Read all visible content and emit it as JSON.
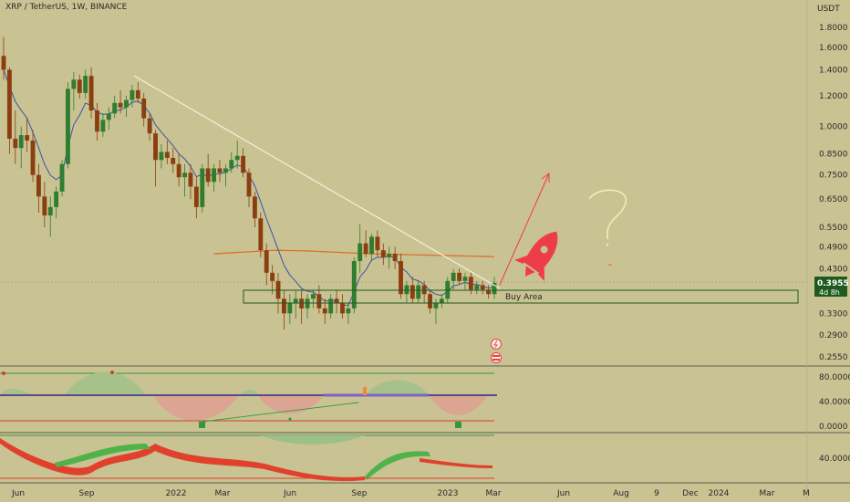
{
  "header": {
    "ticker": "XRP / TetherUS, 1W, BINANCE",
    "currency": "USDT"
  },
  "colors": {
    "background": "#c9c292",
    "bull": "#2f7d2f",
    "bear": "#8b3f10",
    "ema_short": "#3a55a8",
    "ema_long": "#e0702a",
    "trendline": "#f4f1dd",
    "buy_zone": "#1f5a1f",
    "rocket": "#ee3d4a",
    "arrow": "#ee3d4a",
    "question_mark": "#f2eeb0"
  },
  "price_badge": {
    "value": "0.3955",
    "countdown": "4d 8h"
  },
  "annotations": {
    "buy_area": "Buy Area"
  },
  "chart_data": {
    "type": "candlestick",
    "scale": "log",
    "y_ticks": [
      "1.8000",
      "1.6000",
      "1.4000",
      "1.2000",
      "1.0000",
      "0.8500",
      "0.7500",
      "0.6500",
      "0.5500",
      "0.4900",
      "0.4300",
      "0.3300",
      "0.2900",
      "0.2550"
    ],
    "x_ticks": [
      "Jun",
      "Sep",
      "2022",
      "Mar",
      "Jun",
      "Sep",
      "2023",
      "Mar",
      "Jun",
      "Aug",
      "9",
      "Dec",
      "2024",
      "Mar",
      "M"
    ],
    "last_price": 0.3955,
    "buy_zone": [
      0.355,
      0.385
    ],
    "candles": [
      [
        1.52,
        1.7,
        1.32,
        1.4
      ],
      [
        1.4,
        1.42,
        0.85,
        0.93
      ],
      [
        0.93,
        1.1,
        0.8,
        0.88
      ],
      [
        0.88,
        1.0,
        0.78,
        0.95
      ],
      [
        0.95,
        1.05,
        0.86,
        0.92
      ],
      [
        0.92,
        0.98,
        0.72,
        0.75
      ],
      [
        0.75,
        0.8,
        0.6,
        0.66
      ],
      [
        0.66,
        0.72,
        0.55,
        0.59
      ],
      [
        0.59,
        0.66,
        0.52,
        0.62
      ],
      [
        0.62,
        0.7,
        0.58,
        0.68
      ],
      [
        0.68,
        0.82,
        0.66,
        0.8
      ],
      [
        0.8,
        1.3,
        0.78,
        1.25
      ],
      [
        1.25,
        1.38,
        1.1,
        1.32
      ],
      [
        1.32,
        1.36,
        1.18,
        1.22
      ],
      [
        1.22,
        1.4,
        1.18,
        1.35
      ],
      [
        1.35,
        1.42,
        1.05,
        1.1
      ],
      [
        1.1,
        1.15,
        0.92,
        0.97
      ],
      [
        0.97,
        1.08,
        0.94,
        1.04
      ],
      [
        1.04,
        1.12,
        0.98,
        1.08
      ],
      [
        1.08,
        1.2,
        1.05,
        1.15
      ],
      [
        1.15,
        1.24,
        1.08,
        1.12
      ],
      [
        1.12,
        1.2,
        1.06,
        1.17
      ],
      [
        1.17,
        1.28,
        1.12,
        1.24
      ],
      [
        1.24,
        1.3,
        1.15,
        1.18
      ],
      [
        1.18,
        1.22,
        1.0,
        1.05
      ],
      [
        1.05,
        1.08,
        0.92,
        0.96
      ],
      [
        0.96,
        0.98,
        0.7,
        0.82
      ],
      [
        0.82,
        0.9,
        0.78,
        0.86
      ],
      [
        0.86,
        0.92,
        0.8,
        0.83
      ],
      [
        0.83,
        0.88,
        0.76,
        0.8
      ],
      [
        0.8,
        0.85,
        0.7,
        0.74
      ],
      [
        0.74,
        0.8,
        0.66,
        0.76
      ],
      [
        0.76,
        0.8,
        0.65,
        0.7
      ],
      [
        0.7,
        0.74,
        0.58,
        0.62
      ],
      [
        0.62,
        0.8,
        0.6,
        0.78
      ],
      [
        0.78,
        0.85,
        0.7,
        0.72
      ],
      [
        0.72,
        0.8,
        0.68,
        0.78
      ],
      [
        0.78,
        0.82,
        0.72,
        0.76
      ],
      [
        0.76,
        0.8,
        0.7,
        0.78
      ],
      [
        0.78,
        0.86,
        0.76,
        0.82
      ],
      [
        0.82,
        0.92,
        0.78,
        0.84
      ],
      [
        0.84,
        0.88,
        0.74,
        0.76
      ],
      [
        0.76,
        0.78,
        0.62,
        0.66
      ],
      [
        0.66,
        0.68,
        0.55,
        0.58
      ],
      [
        0.58,
        0.6,
        0.46,
        0.48
      ],
      [
        0.48,
        0.5,
        0.39,
        0.42
      ],
      [
        0.42,
        0.44,
        0.37,
        0.4
      ],
      [
        0.4,
        0.42,
        0.33,
        0.36
      ],
      [
        0.36,
        0.38,
        0.3,
        0.33
      ],
      [
        0.33,
        0.37,
        0.31,
        0.35
      ],
      [
        0.35,
        0.38,
        0.32,
        0.36
      ],
      [
        0.36,
        0.38,
        0.31,
        0.34
      ],
      [
        0.34,
        0.37,
        0.32,
        0.36
      ],
      [
        0.36,
        0.38,
        0.34,
        0.37
      ],
      [
        0.37,
        0.39,
        0.33,
        0.34
      ],
      [
        0.34,
        0.36,
        0.31,
        0.33
      ],
      [
        0.33,
        0.37,
        0.32,
        0.36
      ],
      [
        0.36,
        0.38,
        0.33,
        0.35
      ],
      [
        0.35,
        0.37,
        0.32,
        0.33
      ],
      [
        0.33,
        0.35,
        0.31,
        0.34
      ],
      [
        0.34,
        0.46,
        0.33,
        0.45
      ],
      [
        0.45,
        0.56,
        0.42,
        0.5
      ],
      [
        0.5,
        0.54,
        0.46,
        0.47
      ],
      [
        0.47,
        0.53,
        0.45,
        0.52
      ],
      [
        0.52,
        0.54,
        0.46,
        0.48
      ],
      [
        0.48,
        0.5,
        0.44,
        0.46
      ],
      [
        0.46,
        0.49,
        0.43,
        0.47
      ],
      [
        0.47,
        0.49,
        0.43,
        0.45
      ],
      [
        0.45,
        0.47,
        0.36,
        0.37
      ],
      [
        0.37,
        0.4,
        0.35,
        0.39
      ],
      [
        0.39,
        0.41,
        0.35,
        0.36
      ],
      [
        0.36,
        0.4,
        0.35,
        0.39
      ],
      [
        0.39,
        0.4,
        0.35,
        0.37
      ],
      [
        0.37,
        0.38,
        0.33,
        0.34
      ],
      [
        0.34,
        0.36,
        0.31,
        0.35
      ],
      [
        0.35,
        0.37,
        0.34,
        0.36
      ],
      [
        0.36,
        0.41,
        0.35,
        0.4
      ],
      [
        0.4,
        0.43,
        0.38,
        0.42
      ],
      [
        0.42,
        0.43,
        0.39,
        0.4
      ],
      [
        0.4,
        0.42,
        0.38,
        0.41
      ],
      [
        0.41,
        0.42,
        0.37,
        0.38
      ],
      [
        0.38,
        0.4,
        0.37,
        0.39
      ],
      [
        0.39,
        0.4,
        0.37,
        0.38
      ],
      [
        0.38,
        0.39,
        0.36,
        0.37
      ],
      [
        0.37,
        0.41,
        0.36,
        0.3955
      ]
    ]
  }
}
